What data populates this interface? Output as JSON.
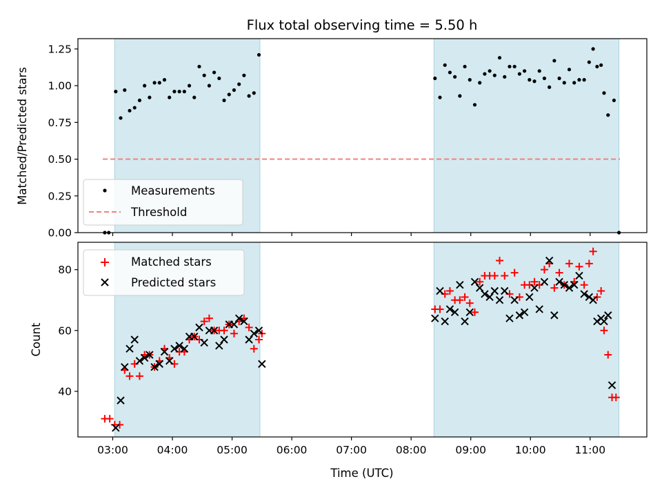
{
  "chart_data": [
    {
      "type": "scatter",
      "title": "Flux total observing time = 5.50 h",
      "xlabel": "",
      "ylabel": "Matched/Predicted stars",
      "xlim": [
        "02:25",
        "11:57"
      ],
      "ylim": [
        0,
        1.32
      ],
      "y_ticks": [
        0.0,
        0.25,
        0.5,
        0.75,
        1.0,
        1.25
      ],
      "y_tick_labels": [
        "0.00",
        "0.25",
        "0.50",
        "0.75",
        "1.00",
        "1.25"
      ],
      "x_ticks": [
        "03:00",
        "04:00",
        "05:00",
        "06:00",
        "07:00",
        "08:00",
        "09:00",
        "10:00",
        "11:00"
      ],
      "x_tick_labels_visible": false,
      "grid": false,
      "legend": "lower-left",
      "shaded_intervals": [
        [
          "03:02",
          "05:28"
        ],
        [
          "08:23",
          "11:29"
        ]
      ],
      "shade_color": "#d4eaf0",
      "series": [
        {
          "name": "Measurements",
          "marker": "dot",
          "color": "#000000",
          "points": [
            [
              "02:52",
              0.0
            ],
            [
              "02:56",
              0.0
            ],
            [
              "03:03",
              0.96
            ],
            [
              "03:08",
              0.78
            ],
            [
              "03:12",
              0.97
            ],
            [
              "03:17",
              0.83
            ],
            [
              "03:22",
              0.85
            ],
            [
              "03:27",
              0.9
            ],
            [
              "03:32",
              1.0
            ],
            [
              "03:37",
              0.92
            ],
            [
              "03:42",
              1.02
            ],
            [
              "03:47",
              1.02
            ],
            [
              "03:52",
              1.04
            ],
            [
              "03:57",
              0.92
            ],
            [
              "04:02",
              0.96
            ],
            [
              "04:07",
              0.96
            ],
            [
              "04:12",
              0.96
            ],
            [
              "04:17",
              1.0
            ],
            [
              "04:22",
              0.92
            ],
            [
              "04:27",
              1.13
            ],
            [
              "04:32",
              1.07
            ],
            [
              "04:37",
              1.0
            ],
            [
              "04:42",
              1.09
            ],
            [
              "04:47",
              1.05
            ],
            [
              "04:52",
              0.9
            ],
            [
              "04:57",
              0.94
            ],
            [
              "05:02",
              0.97
            ],
            [
              "05:07",
              1.01
            ],
            [
              "05:12",
              1.07
            ],
            [
              "05:17",
              0.93
            ],
            [
              "05:22",
              0.95
            ],
            [
              "05:27",
              1.21
            ],
            [
              "08:24",
              1.05
            ],
            [
              "08:29",
              0.92
            ],
            [
              "08:34",
              1.14
            ],
            [
              "08:39",
              1.09
            ],
            [
              "08:44",
              1.06
            ],
            [
              "08:49",
              0.93
            ],
            [
              "08:54",
              1.13
            ],
            [
              "08:59",
              1.04
            ],
            [
              "09:04",
              0.87
            ],
            [
              "09:09",
              1.02
            ],
            [
              "09:14",
              1.08
            ],
            [
              "09:19",
              1.1
            ],
            [
              "09:24",
              1.07
            ],
            [
              "09:29",
              1.19
            ],
            [
              "09:34",
              1.06
            ],
            [
              "09:39",
              1.13
            ],
            [
              "09:44",
              1.13
            ],
            [
              "09:49",
              1.08
            ],
            [
              "09:54",
              1.1
            ],
            [
              "09:59",
              1.04
            ],
            [
              "10:04",
              1.03
            ],
            [
              "10:09",
              1.1
            ],
            [
              "10:14",
              1.05
            ],
            [
              "10:19",
              0.99
            ],
            [
              "10:24",
              1.17
            ],
            [
              "10:29",
              1.05
            ],
            [
              "10:34",
              1.02
            ],
            [
              "10:39",
              1.11
            ],
            [
              "10:44",
              1.02
            ],
            [
              "10:49",
              1.04
            ],
            [
              "10:54",
              1.04
            ],
            [
              "10:59",
              1.16
            ],
            [
              "11:03",
              1.25
            ],
            [
              "11:07",
              1.13
            ],
            [
              "11:11",
              1.14
            ],
            [
              "11:14",
              0.95
            ],
            [
              "11:18",
              0.8
            ],
            [
              "11:24",
              0.9
            ],
            [
              "11:29",
              0.0
            ]
          ]
        },
        {
          "name": "Threshold",
          "line": "dashed",
          "color": "#f08080",
          "points": [
            [
              "02:50",
              0.5
            ],
            [
              "11:30",
              0.5
            ]
          ]
        }
      ]
    },
    {
      "type": "scatter",
      "title": "",
      "xlabel": "Time (UTC)",
      "ylabel": "Count",
      "xlim": [
        "02:25",
        "11:57"
      ],
      "ylim": [
        25,
        89
      ],
      "y_ticks": [
        40,
        60,
        80
      ],
      "y_tick_labels": [
        "40",
        "60",
        "80"
      ],
      "x_ticks": [
        "03:00",
        "04:00",
        "05:00",
        "06:00",
        "07:00",
        "08:00",
        "09:00",
        "10:00",
        "11:00"
      ],
      "x_tick_labels": [
        "03:00",
        "04:00",
        "05:00",
        "06:00",
        "07:00",
        "08:00",
        "09:00",
        "10:00",
        "11:00"
      ],
      "grid": false,
      "legend": "upper-left",
      "shaded_intervals": [
        [
          "03:02",
          "05:28"
        ],
        [
          "08:23",
          "11:29"
        ]
      ],
      "shade_color": "#d4eaf0",
      "series": [
        {
          "name": "Matched stars",
          "marker": "plus",
          "color": "#ff0000",
          "points": [
            [
              "02:52",
              31
            ],
            [
              "02:57",
              31
            ],
            [
              "03:02",
              29
            ],
            [
              "03:07",
              29
            ],
            [
              "03:12",
              47
            ],
            [
              "03:17",
              45
            ],
            [
              "03:22",
              49
            ],
            [
              "03:27",
              45
            ],
            [
              "03:32",
              52
            ],
            [
              "03:37",
              52
            ],
            [
              "03:42",
              48
            ],
            [
              "03:47",
              50
            ],
            [
              "03:52",
              54
            ],
            [
              "03:57",
              51
            ],
            [
              "04:02",
              49
            ],
            [
              "04:07",
              53
            ],
            [
              "04:12",
              53
            ],
            [
              "04:17",
              57
            ],
            [
              "04:22",
              58
            ],
            [
              "04:27",
              57
            ],
            [
              "04:32",
              63
            ],
            [
              "04:37",
              64
            ],
            [
              "04:42",
              60
            ],
            [
              "04:47",
              60
            ],
            [
              "04:52",
              60
            ],
            [
              "04:57",
              62
            ],
            [
              "05:02",
              59
            ],
            [
              "05:07",
              63
            ],
            [
              "05:12",
              64
            ],
            [
              "05:17",
              61
            ],
            [
              "05:22",
              54
            ],
            [
              "05:27",
              57
            ],
            [
              "05:30",
              59
            ],
            [
              "08:24",
              67
            ],
            [
              "08:29",
              67
            ],
            [
              "08:34",
              72
            ],
            [
              "08:39",
              73
            ],
            [
              "08:44",
              70
            ],
            [
              "08:49",
              70
            ],
            [
              "08:54",
              71
            ],
            [
              "08:59",
              69
            ],
            [
              "09:04",
              66
            ],
            [
              "09:09",
              76
            ],
            [
              "09:14",
              78
            ],
            [
              "09:19",
              78
            ],
            [
              "09:24",
              78
            ],
            [
              "09:29",
              83
            ],
            [
              "09:34",
              78
            ],
            [
              "09:39",
              72
            ],
            [
              "09:44",
              79
            ],
            [
              "09:49",
              71
            ],
            [
              "09:54",
              75
            ],
            [
              "09:59",
              75
            ],
            [
              "10:04",
              76
            ],
            [
              "10:09",
              75
            ],
            [
              "10:14",
              80
            ],
            [
              "10:19",
              82
            ],
            [
              "10:24",
              74
            ],
            [
              "10:29",
              79
            ],
            [
              "10:34",
              75
            ],
            [
              "10:39",
              82
            ],
            [
              "10:44",
              76
            ],
            [
              "10:49",
              81
            ],
            [
              "10:54",
              75
            ],
            [
              "10:59",
              82
            ],
            [
              "11:03",
              86
            ],
            [
              "11:07",
              71
            ],
            [
              "11:11",
              73
            ],
            [
              "11:14",
              60
            ],
            [
              "11:18",
              52
            ],
            [
              "11:22",
              38
            ],
            [
              "11:26",
              38
            ]
          ]
        },
        {
          "name": "Predicted stars",
          "marker": "x",
          "color": "#000000",
          "points": [
            [
              "03:03",
              28
            ],
            [
              "03:08",
              37
            ],
            [
              "03:12",
              48
            ],
            [
              "03:17",
              54
            ],
            [
              "03:22",
              57
            ],
            [
              "03:27",
              50
            ],
            [
              "03:32",
              51
            ],
            [
              "03:37",
              52
            ],
            [
              "03:42",
              48
            ],
            [
              "03:47",
              49
            ],
            [
              "03:52",
              53
            ],
            [
              "03:57",
              50
            ],
            [
              "04:02",
              54
            ],
            [
              "04:07",
              55
            ],
            [
              "04:12",
              54
            ],
            [
              "04:17",
              58
            ],
            [
              "04:22",
              58
            ],
            [
              "04:27",
              61
            ],
            [
              "04:32",
              56
            ],
            [
              "04:37",
              60
            ],
            [
              "04:42",
              60
            ],
            [
              "04:47",
              55
            ],
            [
              "04:52",
              57
            ],
            [
              "04:57",
              62
            ],
            [
              "05:02",
              62
            ],
            [
              "05:07",
              64
            ],
            [
              "05:12",
              63
            ],
            [
              "05:17",
              57
            ],
            [
              "05:22",
              59
            ],
            [
              "05:27",
              60
            ],
            [
              "05:30",
              49
            ],
            [
              "08:24",
              64
            ],
            [
              "08:29",
              73
            ],
            [
              "08:34",
              63
            ],
            [
              "08:39",
              67
            ],
            [
              "08:44",
              66
            ],
            [
              "08:49",
              75
            ],
            [
              "08:54",
              63
            ],
            [
              "08:59",
              66
            ],
            [
              "09:04",
              76
            ],
            [
              "09:09",
              74
            ],
            [
              "09:14",
              72
            ],
            [
              "09:19",
              71
            ],
            [
              "09:24",
              73
            ],
            [
              "09:29",
              70
            ],
            [
              "09:34",
              73
            ],
            [
              "09:39",
              64
            ],
            [
              "09:44",
              70
            ],
            [
              "09:49",
              65
            ],
            [
              "09:54",
              66
            ],
            [
              "09:59",
              71
            ],
            [
              "10:04",
              74
            ],
            [
              "10:09",
              67
            ],
            [
              "10:14",
              76
            ],
            [
              "10:19",
              83
            ],
            [
              "10:24",
              65
            ],
            [
              "10:29",
              76
            ],
            [
              "10:34",
              75
            ],
            [
              "10:39",
              74
            ],
            [
              "10:44",
              75
            ],
            [
              "10:49",
              78
            ],
            [
              "10:54",
              72
            ],
            [
              "10:59",
              71
            ],
            [
              "11:03",
              70
            ],
            [
              "11:07",
              63
            ],
            [
              "11:11",
              64
            ],
            [
              "11:14",
              63
            ],
            [
              "11:18",
              65
            ],
            [
              "11:22",
              42
            ]
          ]
        }
      ]
    }
  ]
}
